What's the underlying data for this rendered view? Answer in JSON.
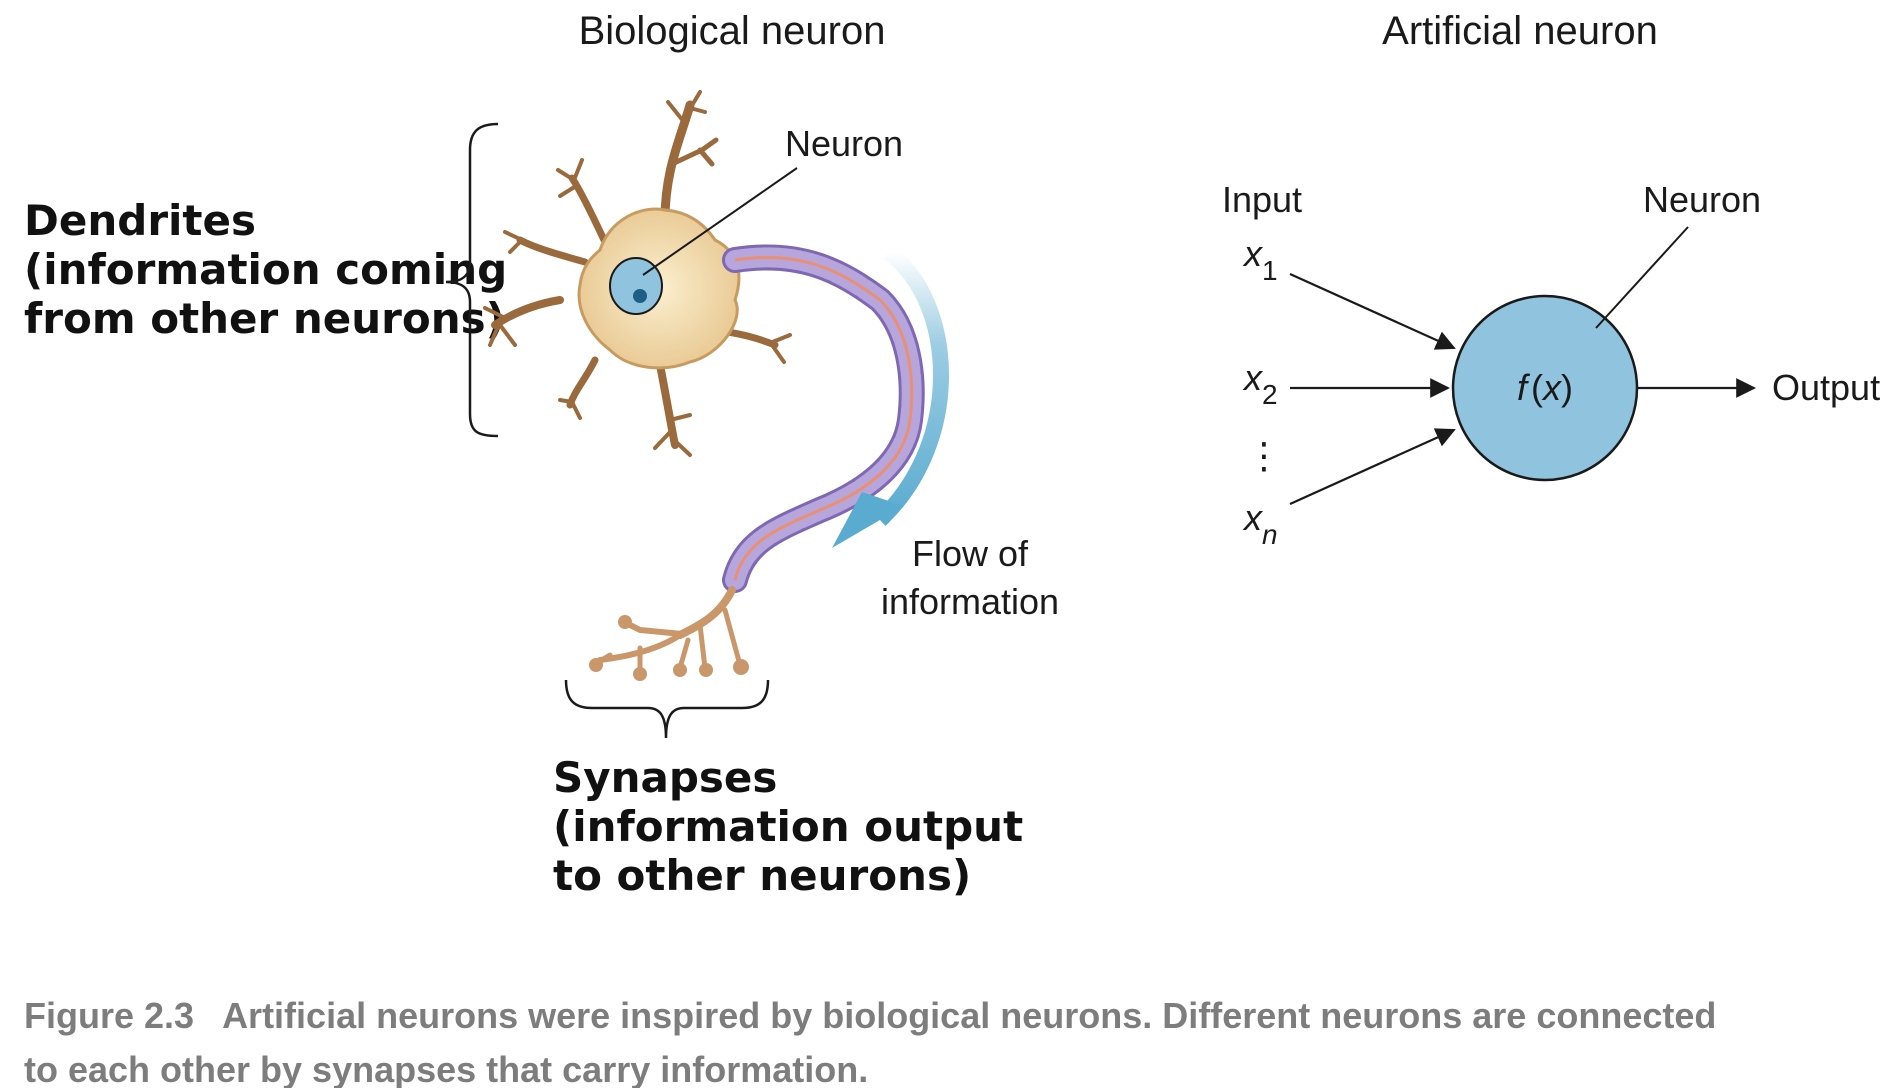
{
  "biological": {
    "title": "Biological neuron",
    "neuron_label": "Neuron",
    "dendrites_label": [
      "Dendrites",
      "(information coming",
      "from other neurons)"
    ],
    "synapses_label": [
      "Synapses",
      "(information output",
      "to other neurons)"
    ],
    "flow_label": [
      "Flow of",
      "information"
    ]
  },
  "artificial": {
    "title": "Artificial neuron",
    "input_label": "Input",
    "neuron_label": "Neuron",
    "inputs": [
      {
        "var": "x",
        "sub": "1"
      },
      {
        "var": "x",
        "sub": "2"
      },
      {
        "var": "x",
        "sub": "n"
      }
    ],
    "ellipsis": "⋮",
    "function_label": {
      "f": "f",
      "open": "(",
      "x": "x",
      "close": ")"
    },
    "output_label": "Output"
  },
  "caption": {
    "number": "Figure 2.3",
    "line1": "Artificial neurons were inspired by biological neurons. Different neurons are connected",
    "line2": "to each other by synapses that carry information."
  },
  "colors": {
    "neuron_fill": "#90c3de",
    "soma_fill": "#f3dcae",
    "axon_fill": "#b7a6dc",
    "axon_core": "#e98f73",
    "flow_arrow": "#5aabd0",
    "caption_text": "#7d7d7d"
  }
}
